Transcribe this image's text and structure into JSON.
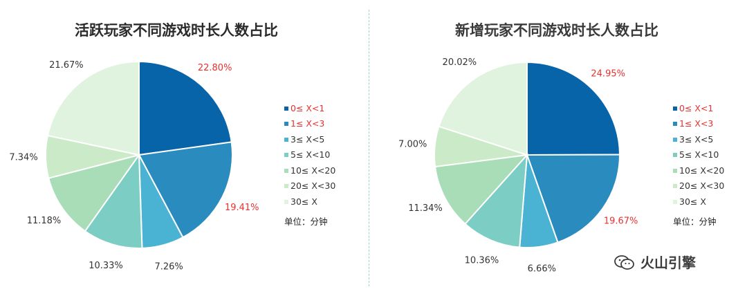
{
  "colors": [
    "#0864a9",
    "#2a8bbf",
    "#4ab3d3",
    "#7ccdc4",
    "#a8ddb8",
    "#cbeac8",
    "#e0f3de"
  ],
  "label_colors": {
    "highlight": "#e8312f",
    "normal": "#333333"
  },
  "legend": {
    "items": [
      "0≤ X<1",
      "1≤ X<3",
      "3≤ X<5",
      "5≤ X<10",
      "10≤ X<20",
      "20≤ X<30",
      "30≤ X"
    ],
    "highlighted": [
      true,
      true,
      false,
      false,
      false,
      false,
      false
    ],
    "unit": "单位：分钟"
  },
  "watermark": {
    "icon": "wechat-icon",
    "text": "火山引擎"
  },
  "chart_data": [
    {
      "type": "pie",
      "title": "活跃玩家不同游戏时长人数占比",
      "categories": [
        "0≤ X<1",
        "1≤ X<3",
        "3≤ X<5",
        "5≤ X<10",
        "10≤ X<20",
        "20≤ X<30",
        "30≤ X"
      ],
      "values": [
        22.8,
        19.41,
        7.26,
        10.33,
        11.18,
        7.34,
        21.67
      ],
      "labels": [
        "22.80%",
        "19.41%",
        "7.26%",
        "10.33%",
        "11.18%",
        "7.34%",
        "21.67%"
      ],
      "legend_position": "right",
      "start_angle": "12 o'clock",
      "direction": "clockwise"
    },
    {
      "type": "pie",
      "title": "新增玩家不同游戏时长人数占比",
      "categories": [
        "0≤ X<1",
        "1≤ X<3",
        "3≤ X<5",
        "5≤ X<10",
        "10≤ X<20",
        "20≤ X<30",
        "30≤ X"
      ],
      "values": [
        24.95,
        19.67,
        6.66,
        10.36,
        11.34,
        7.0,
        20.02
      ],
      "labels": [
        "24.95%",
        "19.67%",
        "6.66%",
        "10.36%",
        "11.34%",
        "7.00%",
        "20.02%"
      ],
      "legend_position": "right",
      "start_angle": "12 o'clock",
      "direction": "clockwise"
    }
  ]
}
